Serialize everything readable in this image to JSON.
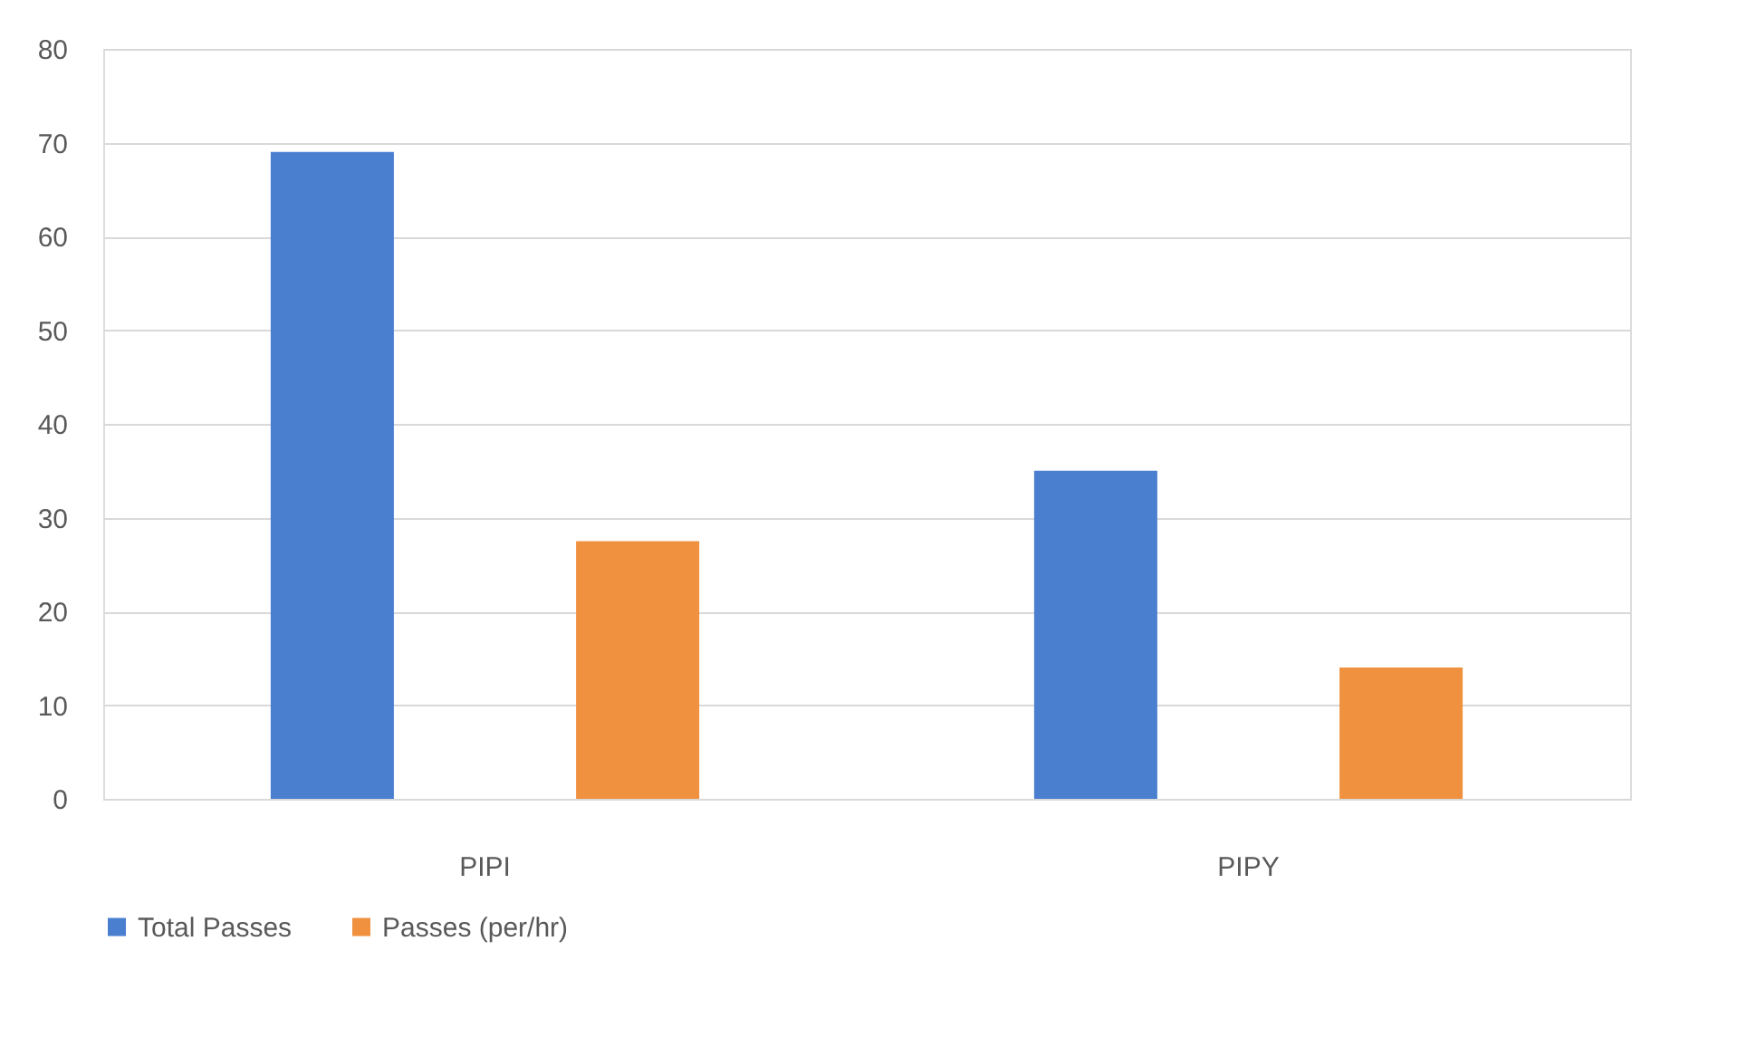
{
  "chart_data": {
    "type": "bar",
    "categories": [
      "PIPI",
      "PIPY"
    ],
    "series": [
      {
        "name": "Total Passes",
        "color": "#4a7fd0",
        "values": [
          69,
          35
        ]
      },
      {
        "name": "Passes (per/hr)",
        "color": "#f0913f",
        "values": [
          27.5,
          14
        ]
      }
    ],
    "ylim": [
      0,
      80
    ],
    "yticks": [
      0,
      10,
      20,
      30,
      40,
      50,
      60,
      70,
      80
    ],
    "grid": "y",
    "legend": "bottom"
  }
}
